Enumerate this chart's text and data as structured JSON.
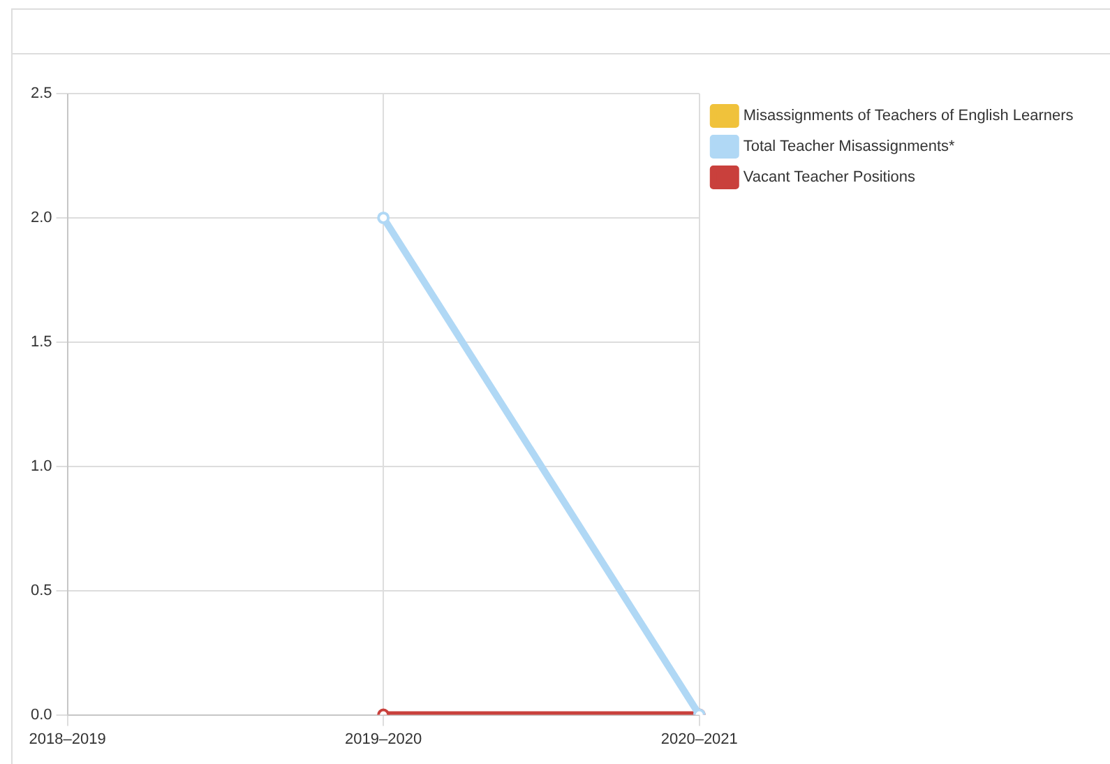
{
  "chart_data": {
    "type": "line",
    "categories": [
      "2018–2019",
      "2019–2020",
      "2020–2021"
    ],
    "series": [
      {
        "name": "Misassignments of Teachers of English Learners",
        "color": "#f0c23b",
        "values": [
          null,
          null,
          null
        ]
      },
      {
        "name": "Total Teacher Misassignments*",
        "color": "#b0d8f5",
        "values": [
          null,
          2,
          0
        ]
      },
      {
        "name": "Vacant Teacher Positions",
        "color": "#c9403c",
        "values": [
          null,
          0,
          0
        ]
      }
    ],
    "ylim": [
      0,
      2.5
    ],
    "yticks": [
      {
        "value": 0,
        "label": "0.0"
      },
      {
        "value": 0.5,
        "label": "0.5"
      },
      {
        "value": 1,
        "label": "1.0"
      },
      {
        "value": 1.5,
        "label": "1.5"
      },
      {
        "value": 2,
        "label": "2.0"
      },
      {
        "value": 2.5,
        "label": "2.5"
      }
    ],
    "grid": true,
    "legend": "top right",
    "marker": "circle",
    "line_style": "solid"
  }
}
